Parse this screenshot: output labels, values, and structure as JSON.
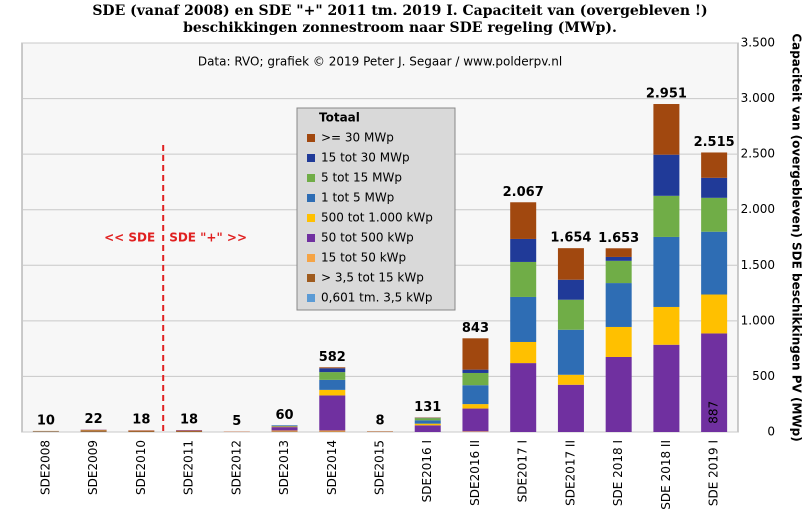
{
  "chart_data": {
    "type": "stacked_bar",
    "title": [
      "SDE (vanaf 2008) en SDE \"+\" 2011 tm. 2019 I. Capaciteit van (overgebleven !)",
      "beschikkingen zonnestroom naar SDE regeling (MWp)."
    ],
    "source": "Data: RVO;  grafiek © 2019 Peter J. Segaar / www.polderpv.nl",
    "y_axis_label": "Capaciteit van (overgebleven) SDE beschikkingen PV (MWp)",
    "annotations": [
      "<<  SDE",
      "SDE \"+\"  >>"
    ],
    "legend_title": "Totaal",
    "categories": [
      "SDE2008",
      "SDE2009",
      "SDE2010",
      "SDE2011",
      "SDE2012",
      "SDE2013",
      "SDE2014",
      "SDE2015",
      "SDE2016 I",
      "SDE2016 II",
      "SDE2017 I",
      "SDE2017 II",
      "SDE 2018 I",
      "SDE 2018 II",
      "SDE 2019 I"
    ],
    "series": [
      {
        "name": "0,601 tm. 3,5 kWp",
        "color": "#5b9bd5",
        "values": [
          3,
          2,
          1,
          1,
          0,
          1,
          1,
          0,
          0,
          1,
          0,
          0,
          0,
          0,
          0
        ]
      },
      {
        "name": "> 3,5 tot 15 kWp",
        "color": "#9e5b1e",
        "values": [
          5,
          14,
          10,
          8,
          1,
          5,
          3,
          1,
          0,
          0,
          0,
          0,
          0,
          0,
          0
        ]
      },
      {
        "name": "15 tot 50 kWp",
        "color": "#f5a445",
        "values": [
          2,
          4,
          5,
          4,
          3,
          8,
          10,
          2,
          0,
          5,
          0,
          0,
          0,
          0,
          0
        ]
      },
      {
        "name": "50 tot 500 kWp",
        "color": "#7030a0",
        "values": [
          0,
          2,
          2,
          5,
          1,
          30,
          315,
          3,
          60,
          205,
          620,
          425,
          675,
          785,
          887
        ],
        "value_labels": [
          null,
          null,
          null,
          null,
          null,
          null,
          null,
          null,
          null,
          null,
          null,
          null,
          null,
          null,
          "887"
        ]
      },
      {
        "name": "500 tot 1.000 kWp",
        "color": "#ffc000",
        "values": [
          0,
          0,
          0,
          0,
          0,
          6,
          50,
          2,
          15,
          40,
          190,
          90,
          270,
          340,
          350
        ]
      },
      {
        "name": "1 tot 5 MWp",
        "color": "#2e6db4",
        "values": [
          0,
          0,
          0,
          0,
          0,
          10,
          90,
          0,
          30,
          170,
          405,
          405,
          395,
          630,
          565
        ]
      },
      {
        "name": "5 tot 15 MWp",
        "color": "#70ad47",
        "values": [
          0,
          0,
          0,
          0,
          0,
          0,
          70,
          0,
          20,
          110,
          315,
          270,
          200,
          370,
          305
        ]
      },
      {
        "name": "15 tot 30 MWp",
        "color": "#203a98",
        "values": [
          0,
          0,
          0,
          0,
          0,
          0,
          35,
          0,
          3,
          30,
          207,
          180,
          35,
          370,
          180
        ]
      },
      {
        "name": ">= 30 MWp",
        "color": "#a1480f",
        "values": [
          0,
          0,
          0,
          0,
          0,
          0,
          8,
          0,
          3,
          282,
          330,
          284,
          78,
          456,
          228
        ]
      }
    ],
    "totals": {
      "values": [
        10,
        22,
        18,
        18,
        5,
        60,
        582,
        8,
        131,
        843,
        2067,
        1654,
        1653,
        2951,
        2515
      ],
      "value_labels": [
        "10",
        "22",
        "18",
        "18",
        "5",
        "60",
        "582",
        "8",
        "131",
        "843",
        "2.067",
        "1.654",
        "1.653",
        "2.951",
        "2.515"
      ]
    },
    "ylim": [
      0,
      3500
    ],
    "yticks": [
      0,
      500,
      {
        "value": 1000,
        "label": "1.000"
      },
      {
        "value": 1500,
        "label": "1.500"
      },
      {
        "value": 2000,
        "label": "2.000"
      },
      {
        "value": 2500,
        "label": "2.500"
      },
      {
        "value": 3000,
        "label": "3.000"
      },
      {
        "value": 3500,
        "label": "3.500"
      }
    ],
    "grid": true
  }
}
